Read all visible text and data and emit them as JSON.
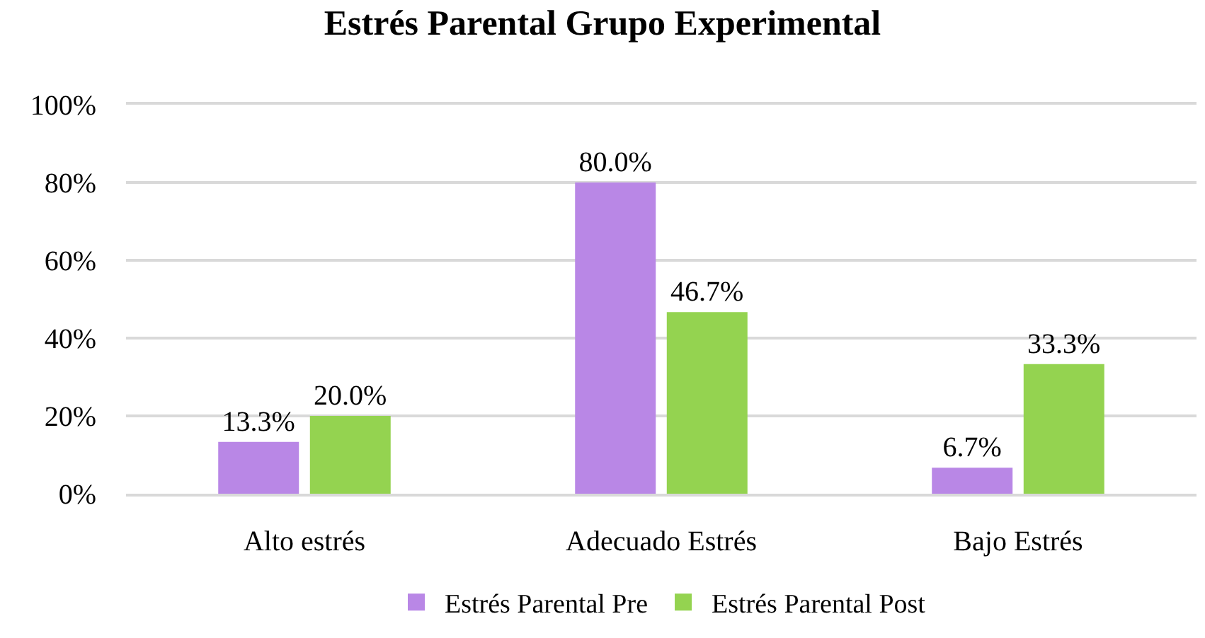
{
  "chart_data": {
    "type": "bar",
    "title": "Estrés Parental Grupo Experimental",
    "categories": [
      "Alto estrés",
      "Adecuado Estrés",
      "Bajo Estrés"
    ],
    "series": [
      {
        "name": "Estrés Parental Pre",
        "color": "#b987e6",
        "values": [
          13.3,
          80.0,
          6.7
        ],
        "value_labels": [
          "13.3%",
          "80.0%",
          "6.7%"
        ]
      },
      {
        "name": "Estrés Parental Post",
        "color": "#94d350",
        "values": [
          20.0,
          46.7,
          33.3
        ],
        "value_labels": [
          "20.0%",
          "46.7%",
          "33.3%"
        ]
      }
    ],
    "ylim": [
      0,
      100
    ],
    "yticks": [
      {
        "value": 0,
        "label": "0%"
      },
      {
        "value": 20,
        "label": "20%"
      },
      {
        "value": 40,
        "label": "40%"
      },
      {
        "value": 60,
        "label": "60%"
      },
      {
        "value": 80,
        "label": "80%"
      },
      {
        "value": 100,
        "label": "100%"
      }
    ],
    "grid": "y",
    "legend": "bottom"
  }
}
